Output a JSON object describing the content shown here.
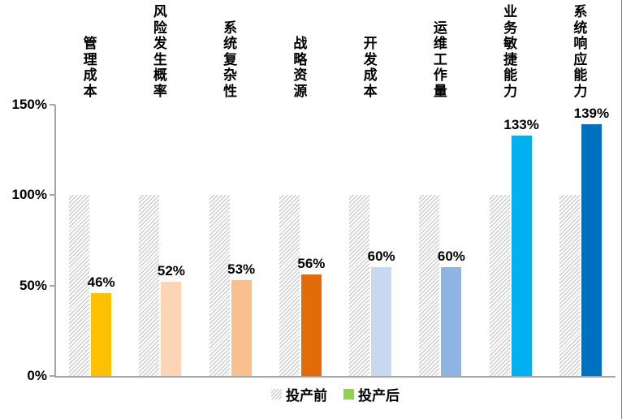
{
  "chart_data": {
    "type": "bar",
    "title": "",
    "categories": [
      "管理成本",
      "风险发生概率",
      "系统复杂性",
      "战略资源",
      "开发成本",
      "运维工作量",
      "业务敏捷能力",
      "系统响应能力"
    ],
    "series": [
      {
        "name": "投产前",
        "values": [
          100,
          100,
          100,
          100,
          100,
          100,
          100,
          100
        ],
        "fill": "hatched-gray",
        "legend_swatch_color": "#bfbfbf"
      },
      {
        "name": "投产后",
        "values": [
          46,
          52,
          53,
          56,
          60,
          60,
          133,
          139
        ],
        "data_labels": [
          "46%",
          "52%",
          "53%",
          "56%",
          "60%",
          "60%",
          "133%",
          "139%"
        ],
        "point_colors": [
          "#FFC000",
          "#FBD5B5",
          "#FABF8F",
          "#E36C0A",
          "#C6D9F1",
          "#8EB4E3",
          "#00B0F0",
          "#0070C0"
        ],
        "legend_swatch_color": "#92D050"
      }
    ],
    "xlabel": "",
    "ylabel": "",
    "y_ticks": [
      "0%",
      "50%",
      "100%",
      "150%"
    ],
    "y_tick_values": [
      0,
      50,
      100,
      150
    ],
    "ylim": [
      0,
      150
    ],
    "grid": false,
    "legend_position": "bottom",
    "category_label_orientation": "vertical-stacked"
  },
  "colors": {
    "background": "#ffffff",
    "axis": "#a6a6a6",
    "hatch_line": "#bfbfbf",
    "text": "#000000",
    "frame_right": "#7f7f7f"
  }
}
